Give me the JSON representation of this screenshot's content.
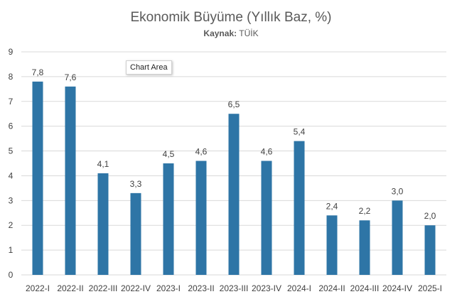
{
  "chart_data": {
    "type": "bar",
    "title": "Ekonomik Büyüme (Yıllık Baz, %)",
    "subtitle_prefix": "Kaynak:",
    "subtitle_value": "TÜİK",
    "categories": [
      "2022-I",
      "2022-II",
      "2022-III",
      "2022-IV",
      "2023-I",
      "2023-II",
      "2023-III",
      "2023-IV",
      "2024-I",
      "2024-II",
      "2024-III",
      "2024-IV",
      "2025-I"
    ],
    "values": [
      7.8,
      7.6,
      4.1,
      3.3,
      4.5,
      4.6,
      6.5,
      4.6,
      5.4,
      2.4,
      2.2,
      3.0,
      2.0
    ],
    "data_labels": [
      "7,8",
      "7,6",
      "4,1",
      "3,3",
      "4,5",
      "4,6",
      "6,5",
      "4,6",
      "5,4",
      "2,4",
      "2,2",
      "3,0",
      "2,0"
    ],
    "y_ticks": [
      "0",
      "1",
      "2",
      "3",
      "4",
      "5",
      "6",
      "7",
      "8",
      "9"
    ],
    "ylim": [
      0,
      9
    ],
    "grid": true,
    "bar_color": "#2e75a6",
    "grid_color": "#d9d9d9"
  },
  "tooltip": {
    "label": "Chart Area"
  }
}
